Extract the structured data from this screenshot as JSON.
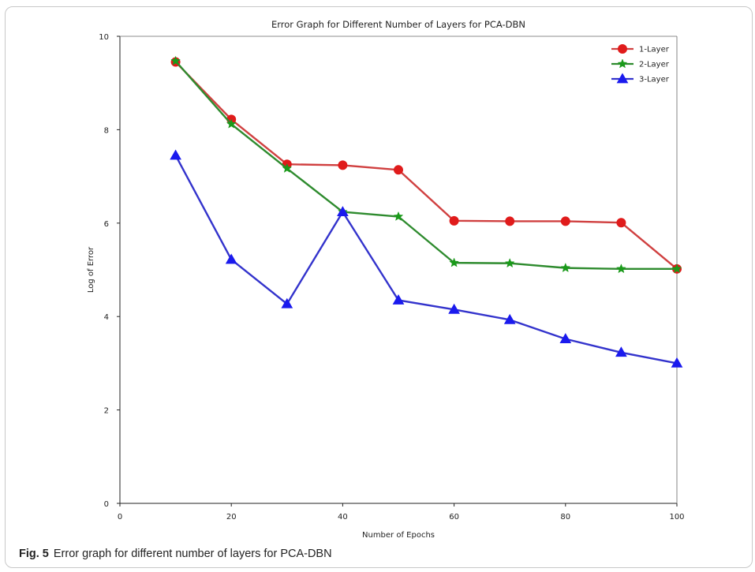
{
  "caption": {
    "label": "Fig. 5",
    "text": "Error graph for different number of layers for PCA-DBN"
  },
  "chart_data": {
    "type": "line",
    "title": "Error Graph for Different Number of Layers for PCA-DBN",
    "xlabel": "Number of Epochs",
    "ylabel": "Log of Error",
    "xlim": [
      0,
      100
    ],
    "ylim": [
      0,
      10
    ],
    "xticks": [
      "0",
      "20",
      "40",
      "60",
      "80",
      "100"
    ],
    "yticks": [
      "0",
      "2",
      "4",
      "6",
      "8",
      "10"
    ],
    "grid": false,
    "legend_position": "top-right",
    "x": [
      10,
      20,
      30,
      40,
      50,
      60,
      70,
      80,
      90,
      100
    ],
    "series": [
      {
        "name": "1-Layer",
        "color": "#e01b1b",
        "line_color": "#d04040",
        "marker": "circle",
        "values": [
          9.45,
          8.22,
          7.26,
          7.24,
          7.14,
          6.05,
          6.04,
          6.04,
          6.01,
          5.02
        ]
      },
      {
        "name": "2-Layer",
        "color": "#1a9a1a",
        "line_color": "#2e8b2e",
        "marker": "star",
        "values": [
          9.47,
          8.12,
          7.17,
          6.24,
          6.14,
          5.15,
          5.14,
          5.04,
          5.02,
          5.02
        ]
      },
      {
        "name": "3-Layer",
        "color": "#1a1aee",
        "line_color": "#3333cc",
        "marker": "triangle",
        "values": [
          7.45,
          5.22,
          4.27,
          6.24,
          4.35,
          4.15,
          3.93,
          3.52,
          3.23,
          3.0
        ]
      }
    ]
  }
}
